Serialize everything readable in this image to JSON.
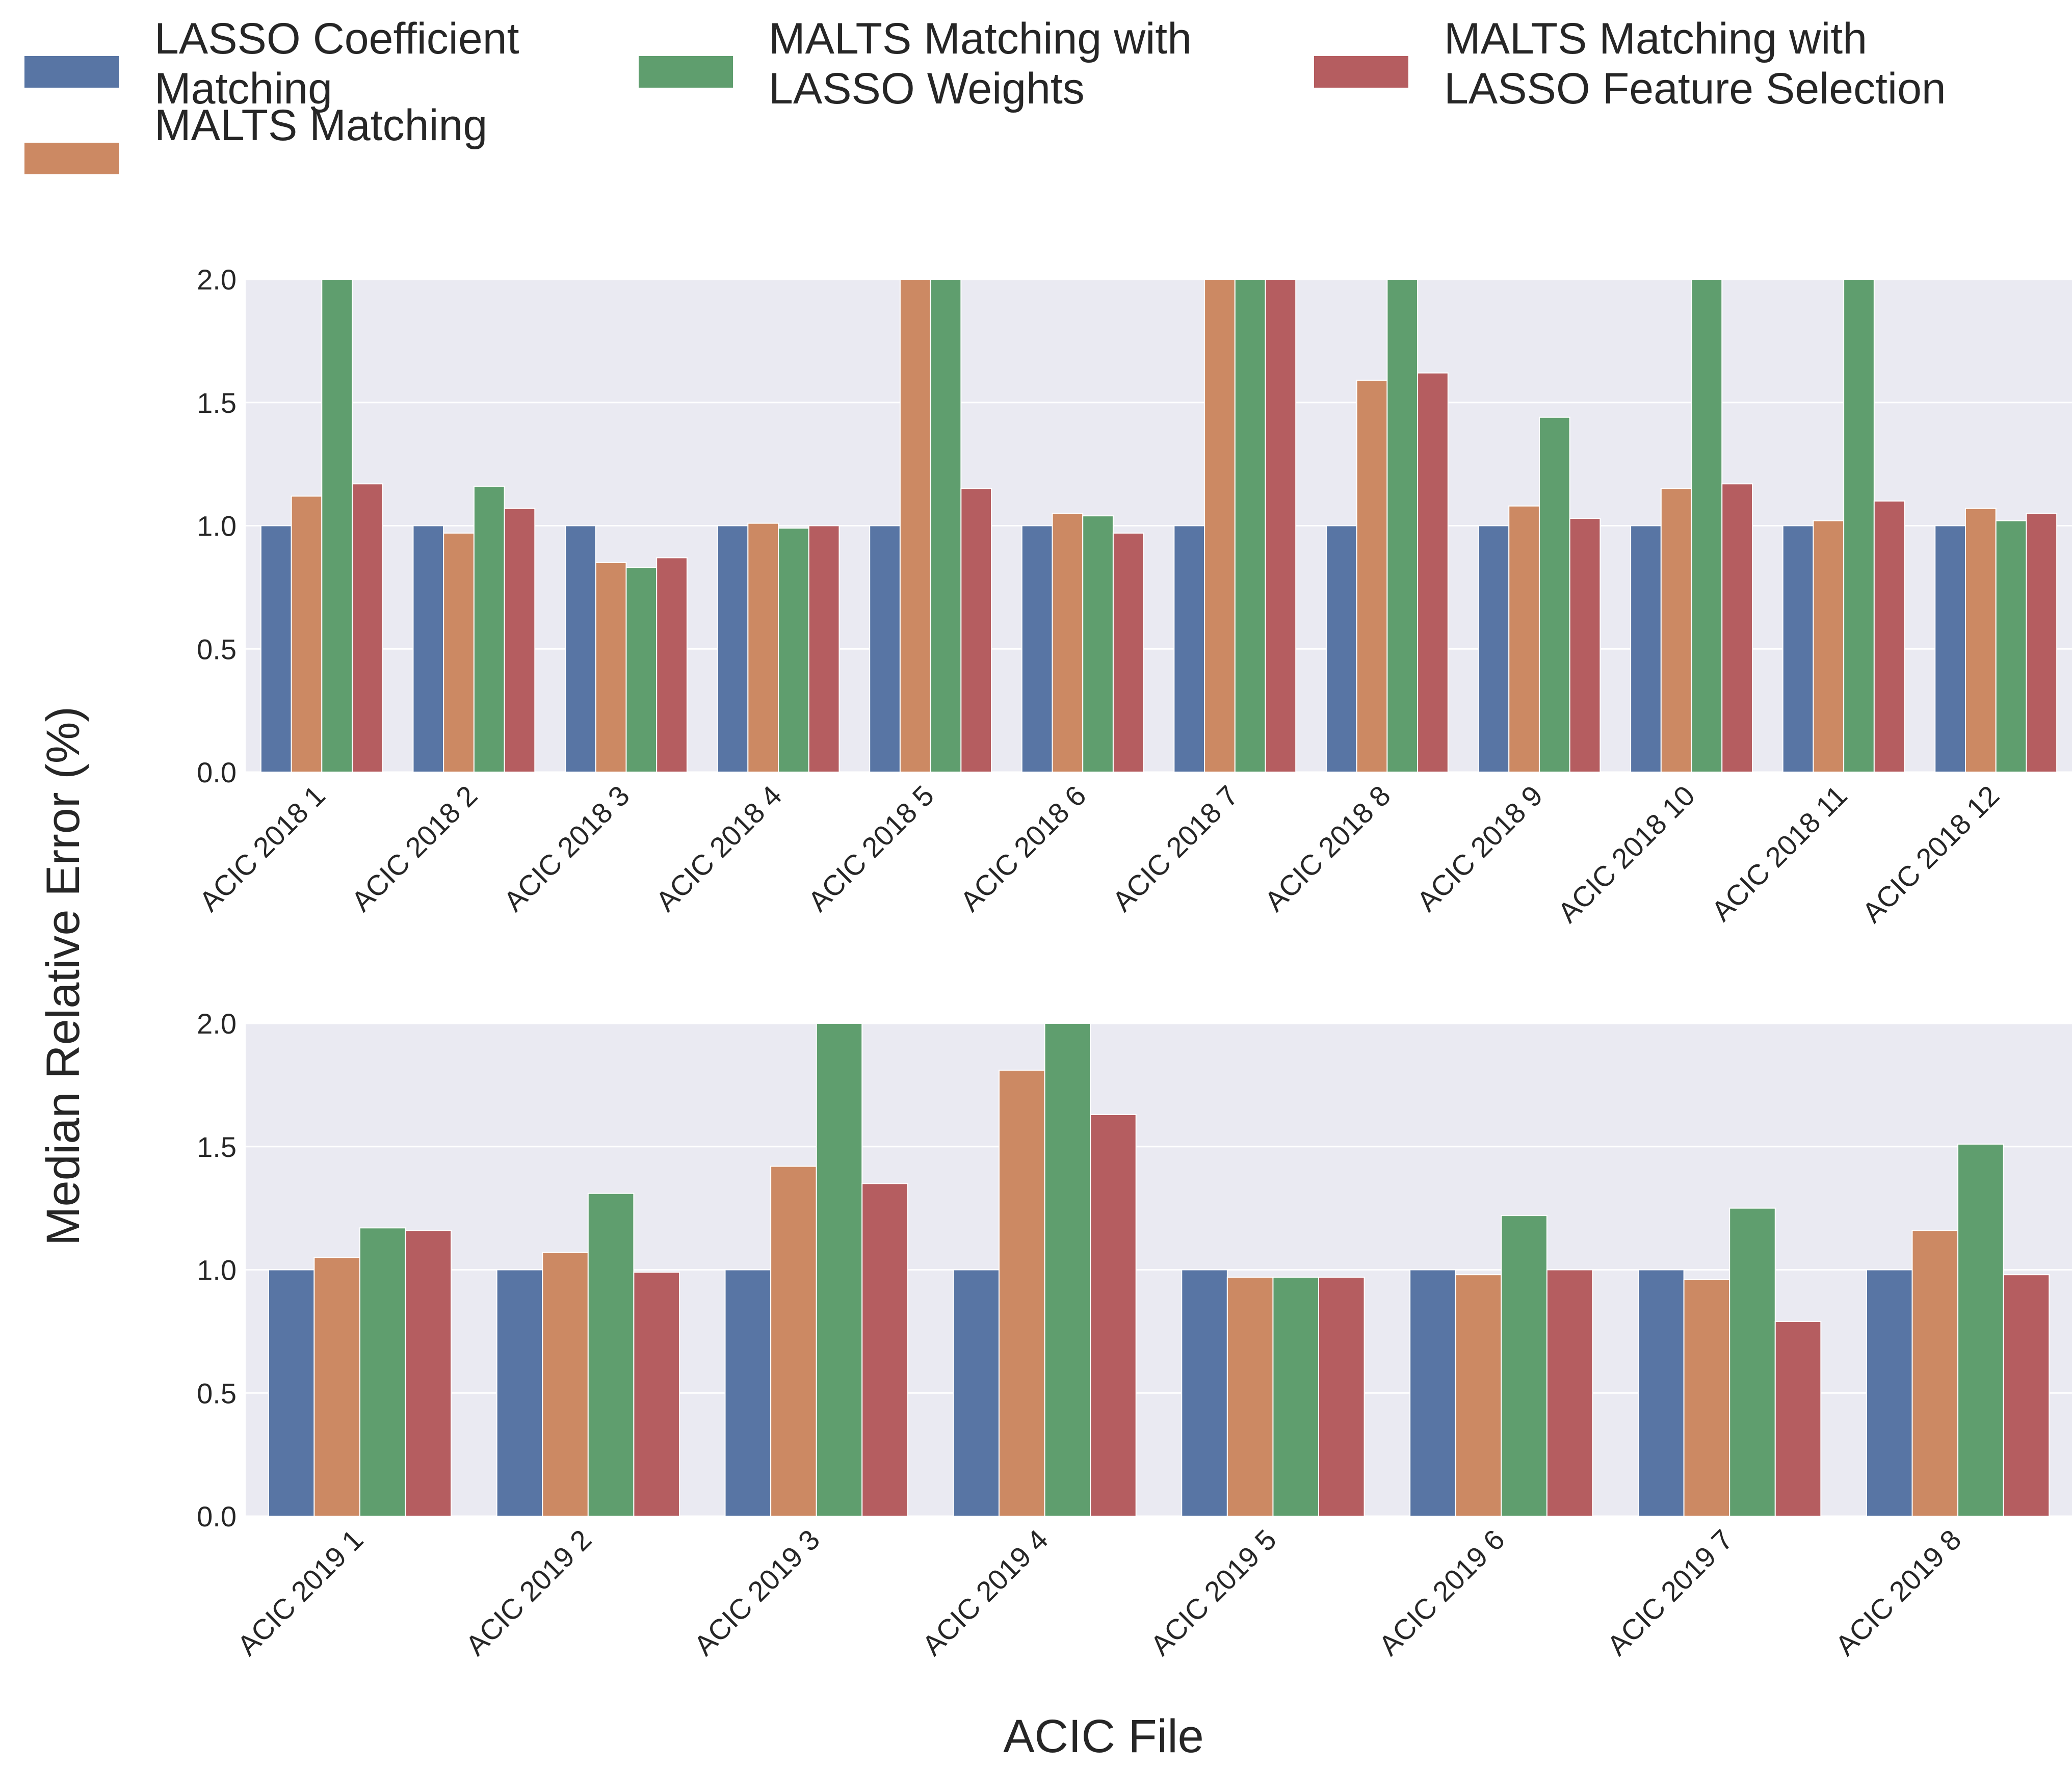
{
  "chart_data": {
    "type": "bar",
    "ylabel": "Median Relative Error (%)",
    "xlabel": "ACIC File",
    "legend": {
      "placement": "top",
      "entries": [
        {
          "label_lines": [
            "LASSO Coefficient",
            "Matching"
          ],
          "color": "#5875a4"
        },
        {
          "label_lines": [
            "MALTS Matching"
          ],
          "color": "#cc8963"
        },
        {
          "label_lines": [
            "MALTS Matching with",
            "LASSO Weights"
          ],
          "color": "#5f9e6e"
        },
        {
          "label_lines": [
            "MALTS Matching with",
            "LASSO Feature Selection"
          ],
          "color": "#b55d60"
        }
      ]
    },
    "grid": true,
    "background": "#eaeaf2",
    "panels": [
      {
        "ylim": [
          0,
          2.0
        ],
        "yticks": [
          "0.0",
          "0.5",
          "1.0",
          "1.5",
          "2.0"
        ],
        "categories": [
          "ACIC 2018 1",
          "ACIC 2018 2",
          "ACIC 2018 3",
          "ACIC 2018 4",
          "ACIC 2018 5",
          "ACIC 2018 6",
          "ACIC 2018 7",
          "ACIC 2018 8",
          "ACIC 2018 9",
          "ACIC 2018 10",
          "ACIC 2018 11",
          "ACIC 2018 12"
        ],
        "series": [
          {
            "name": "LASSO Coefficient Matching",
            "values": [
              1.0,
              1.0,
              1.0,
              1.0,
              1.0,
              1.0,
              1.0,
              1.0,
              1.0,
              1.0,
              1.0,
              1.0
            ]
          },
          {
            "name": "MALTS Matching",
            "values": [
              1.12,
              0.97,
              0.85,
              1.01,
              2.0,
              1.05,
              2.0,
              1.59,
              1.08,
              1.15,
              1.02,
              1.07
            ]
          },
          {
            "name": "MALTS Matching with LASSO Weights",
            "values": [
              2.0,
              1.16,
              0.83,
              0.99,
              2.0,
              1.04,
              2.0,
              2.0,
              1.44,
              2.0,
              2.0,
              1.02
            ]
          },
          {
            "name": "MALTS Matching with LASSO Feature Selection",
            "values": [
              1.17,
              1.07,
              0.87,
              1.0,
              1.15,
              0.97,
              2.0,
              1.62,
              1.03,
              1.17,
              1.1,
              1.05
            ]
          }
        ]
      },
      {
        "ylim": [
          0,
          2.0
        ],
        "yticks": [
          "0.0",
          "0.5",
          "1.0",
          "1.5",
          "2.0"
        ],
        "categories": [
          "ACIC 2019 1",
          "ACIC 2019 2",
          "ACIC 2019 3",
          "ACIC 2019 4",
          "ACIC 2019 5",
          "ACIC 2019 6",
          "ACIC 2019 7",
          "ACIC 2019 8"
        ],
        "series": [
          {
            "name": "LASSO Coefficient Matching",
            "values": [
              1.0,
              1.0,
              1.0,
              1.0,
              1.0,
              1.0,
              1.0,
              1.0
            ]
          },
          {
            "name": "MALTS Matching",
            "values": [
              1.05,
              1.07,
              1.42,
              1.81,
              0.97,
              0.98,
              0.96,
              1.16
            ]
          },
          {
            "name": "MALTS Matching with LASSO Weights",
            "values": [
              1.17,
              1.31,
              2.0,
              2.0,
              0.97,
              1.22,
              1.25,
              1.51
            ]
          },
          {
            "name": "MALTS Matching with LASSO Feature Selection",
            "values": [
              1.16,
              0.99,
              1.35,
              1.63,
              0.97,
              1.0,
              0.79,
              0.98
            ]
          }
        ]
      }
    ]
  }
}
